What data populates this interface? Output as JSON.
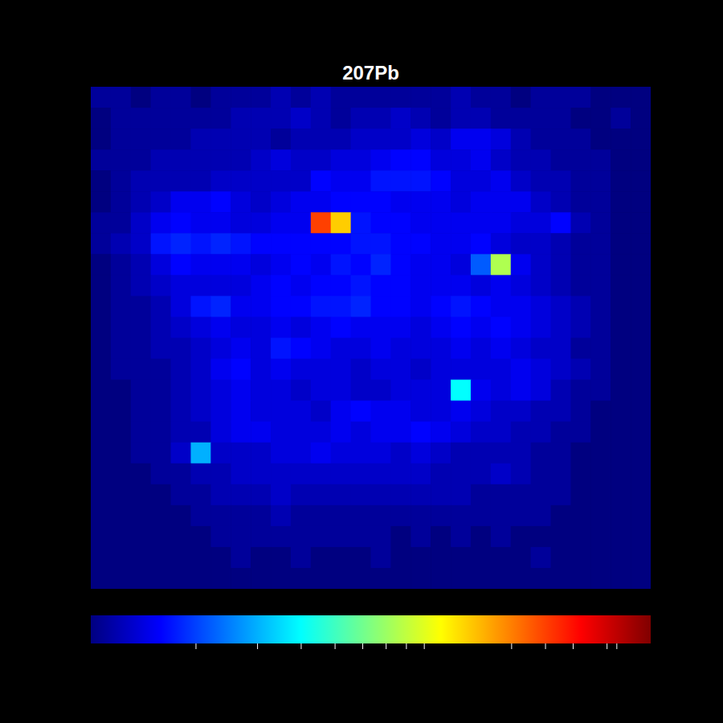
{
  "chart_data": {
    "type": "heatmap",
    "title": "207Pb",
    "log": true,
    "tick_labels": false,
    "colorbar": {
      "range": [
        1,
        40
      ],
      "ticks": [
        2,
        3,
        4,
        5,
        6,
        7,
        8,
        9,
        16,
        20,
        24,
        30,
        32
      ]
    },
    "cells": [
      [
        1.1,
        1.1,
        1.0,
        1.1,
        1.1,
        1.0,
        1.1,
        1.1,
        1.1,
        1.2,
        1.1,
        1.2,
        1.1,
        1.1,
        1.1,
        1.1,
        1.1,
        1.1,
        1.2,
        1.1,
        1.1,
        1.0,
        1.1,
        1.1,
        1.1,
        1.0,
        1.0,
        1.0
      ],
      [
        1.0,
        1.1,
        1.1,
        1.1,
        1.1,
        1.1,
        1.1,
        1.2,
        1.2,
        1.2,
        1.3,
        1.2,
        1.1,
        1.2,
        1.2,
        1.3,
        1.2,
        1.1,
        1.2,
        1.2,
        1.1,
        1.1,
        1.1,
        1.1,
        1.0,
        1.0,
        1.1,
        1.0
      ],
      [
        1.0,
        1.1,
        1.1,
        1.1,
        1.1,
        1.2,
        1.2,
        1.2,
        1.2,
        1.1,
        1.2,
        1.2,
        1.2,
        1.3,
        1.3,
        1.3,
        1.4,
        1.3,
        1.5,
        1.5,
        1.4,
        1.2,
        1.1,
        1.1,
        1.1,
        1.0,
        1.0,
        1.0
      ],
      [
        1.1,
        1.1,
        1.1,
        1.2,
        1.2,
        1.2,
        1.2,
        1.2,
        1.3,
        1.4,
        1.3,
        1.3,
        1.4,
        1.4,
        1.5,
        1.6,
        1.6,
        1.4,
        1.4,
        1.5,
        1.3,
        1.2,
        1.2,
        1.1,
        1.1,
        1.1,
        1.0,
        1.0
      ],
      [
        1.0,
        1.1,
        1.2,
        1.2,
        1.2,
        1.2,
        1.3,
        1.3,
        1.3,
        1.3,
        1.3,
        1.6,
        1.5,
        1.5,
        1.7,
        1.7,
        1.7,
        1.6,
        1.4,
        1.4,
        1.5,
        1.3,
        1.2,
        1.2,
        1.1,
        1.1,
        1.0,
        1.0
      ],
      [
        1.0,
        1.1,
        1.2,
        1.3,
        1.5,
        1.5,
        1.6,
        1.4,
        1.3,
        1.4,
        1.5,
        1.5,
        1.6,
        1.6,
        1.6,
        1.5,
        1.5,
        1.5,
        1.4,
        1.5,
        1.5,
        1.5,
        1.3,
        1.2,
        1.1,
        1.1,
        1.0,
        1.0
      ],
      [
        1.1,
        1.1,
        1.3,
        1.5,
        1.6,
        1.5,
        1.5,
        1.4,
        1.4,
        1.5,
        1.5,
        20,
        12,
        1.7,
        1.6,
        1.6,
        1.5,
        1.5,
        1.5,
        1.5,
        1.5,
        1.4,
        1.4,
        1.6,
        1.2,
        1.1,
        1.0,
        1.0
      ],
      [
        1.1,
        1.2,
        1.3,
        1.7,
        1.8,
        1.7,
        1.8,
        1.7,
        1.6,
        1.6,
        1.6,
        1.6,
        1.6,
        1.7,
        1.7,
        1.6,
        1.6,
        1.5,
        1.5,
        1.6,
        1.4,
        1.3,
        1.3,
        1.2,
        1.1,
        1.1,
        1.0,
        1.0
      ],
      [
        1.0,
        1.1,
        1.2,
        1.4,
        1.6,
        1.5,
        1.5,
        1.5,
        1.4,
        1.5,
        1.6,
        1.5,
        1.7,
        1.6,
        1.8,
        1.6,
        1.5,
        1.5,
        1.4,
        2.2,
        7.5,
        1.5,
        1.3,
        1.2,
        1.1,
        1.1,
        1.0,
        1.0
      ],
      [
        1.0,
        1.1,
        1.2,
        1.3,
        1.4,
        1.4,
        1.4,
        1.4,
        1.5,
        1.6,
        1.5,
        1.6,
        1.6,
        1.7,
        1.6,
        1.6,
        1.5,
        1.5,
        1.5,
        1.4,
        1.5,
        1.4,
        1.3,
        1.2,
        1.1,
        1.1,
        1.0,
        1.0
      ],
      [
        1.0,
        1.1,
        1.1,
        1.2,
        1.4,
        1.7,
        1.8,
        1.5,
        1.5,
        1.6,
        1.6,
        1.7,
        1.7,
        1.8,
        1.6,
        1.6,
        1.5,
        1.6,
        1.7,
        1.6,
        1.5,
        1.5,
        1.4,
        1.3,
        1.2,
        1.1,
        1.0,
        1.0
      ],
      [
        1.0,
        1.1,
        1.1,
        1.2,
        1.3,
        1.4,
        1.5,
        1.4,
        1.4,
        1.5,
        1.4,
        1.5,
        1.6,
        1.5,
        1.5,
        1.5,
        1.4,
        1.5,
        1.6,
        1.5,
        1.6,
        1.5,
        1.4,
        1.3,
        1.2,
        1.1,
        1.0,
        1.0
      ],
      [
        1.0,
        1.1,
        1.1,
        1.2,
        1.2,
        1.3,
        1.4,
        1.5,
        1.4,
        1.7,
        1.6,
        1.5,
        1.4,
        1.4,
        1.5,
        1.4,
        1.4,
        1.4,
        1.5,
        1.4,
        1.5,
        1.4,
        1.3,
        1.3,
        1.1,
        1.1,
        1.0,
        1.0
      ],
      [
        1.0,
        1.1,
        1.1,
        1.1,
        1.2,
        1.3,
        1.5,
        1.6,
        1.4,
        1.5,
        1.4,
        1.4,
        1.4,
        1.3,
        1.4,
        1.4,
        1.3,
        1.4,
        1.4,
        1.4,
        1.4,
        1.5,
        1.4,
        1.3,
        1.2,
        1.1,
        1.0,
        1.0
      ],
      [
        1.0,
        1.0,
        1.1,
        1.1,
        1.2,
        1.3,
        1.4,
        1.5,
        1.4,
        1.4,
        1.3,
        1.4,
        1.4,
        1.3,
        1.3,
        1.4,
        1.4,
        1.4,
        4.0,
        1.5,
        1.4,
        1.5,
        1.4,
        1.2,
        1.1,
        1.1,
        1.0,
        1.0
      ],
      [
        1.0,
        1.0,
        1.1,
        1.1,
        1.2,
        1.3,
        1.4,
        1.5,
        1.4,
        1.4,
        1.4,
        1.3,
        1.5,
        1.6,
        1.5,
        1.5,
        1.4,
        1.4,
        1.5,
        1.4,
        1.3,
        1.3,
        1.2,
        1.2,
        1.1,
        1.0,
        1.0,
        1.0
      ],
      [
        1.0,
        1.0,
        1.1,
        1.1,
        1.2,
        1.2,
        1.4,
        1.5,
        1.5,
        1.4,
        1.4,
        1.4,
        1.5,
        1.4,
        1.5,
        1.5,
        1.6,
        1.5,
        1.4,
        1.3,
        1.3,
        1.2,
        1.2,
        1.1,
        1.1,
        1.0,
        1.0,
        1.0
      ],
      [
        1.0,
        1.0,
        1.1,
        1.1,
        1.3,
        3.0,
        1.3,
        1.3,
        1.3,
        1.4,
        1.4,
        1.5,
        1.4,
        1.4,
        1.4,
        1.3,
        1.4,
        1.3,
        1.2,
        1.2,
        1.2,
        1.2,
        1.1,
        1.1,
        1.0,
        1.0,
        1.0,
        1.0
      ],
      [
        1.0,
        1.0,
        1.0,
        1.1,
        1.1,
        1.2,
        1.2,
        1.3,
        1.3,
        1.3,
        1.3,
        1.3,
        1.3,
        1.3,
        1.3,
        1.3,
        1.3,
        1.2,
        1.2,
        1.2,
        1.3,
        1.2,
        1.1,
        1.1,
        1.0,
        1.0,
        1.0,
        1.0
      ],
      [
        1.0,
        1.0,
        1.0,
        1.0,
        1.1,
        1.1,
        1.2,
        1.2,
        1.2,
        1.3,
        1.2,
        1.2,
        1.2,
        1.2,
        1.2,
        1.2,
        1.2,
        1.2,
        1.2,
        1.1,
        1.1,
        1.1,
        1.1,
        1.1,
        1.0,
        1.0,
        1.0,
        1.0
      ],
      [
        1.0,
        1.0,
        1.0,
        1.0,
        1.0,
        1.1,
        1.1,
        1.1,
        1.1,
        1.2,
        1.1,
        1.1,
        1.1,
        1.1,
        1.1,
        1.1,
        1.1,
        1.1,
        1.1,
        1.1,
        1.1,
        1.1,
        1.1,
        1.0,
        1.0,
        1.0,
        1.0,
        1.0
      ],
      [
        1.0,
        1.0,
        1.0,
        1.0,
        1.0,
        1.0,
        1.1,
        1.1,
        1.1,
        1.1,
        1.1,
        1.1,
        1.1,
        1.1,
        1.1,
        1.0,
        1.1,
        1.0,
        1.1,
        1.0,
        1.1,
        1.0,
        1.0,
        1.0,
        1.0,
        1.0,
        1.0,
        1.0
      ],
      [
        1.0,
        1.0,
        1.0,
        1.0,
        1.0,
        1.0,
        1.0,
        1.1,
        1.0,
        1.0,
        1.1,
        1.0,
        1.0,
        1.0,
        1.1,
        1.0,
        1.0,
        1.0,
        1.0,
        1.0,
        1.0,
        1.0,
        1.1,
        1.0,
        1.0,
        1.0,
        1.0,
        1.0
      ],
      [
        1.0,
        1.0,
        1.0,
        1.0,
        1.0,
        1.0,
        1.0,
        1.0,
        1.0,
        1.0,
        1.0,
        1.0,
        1.0,
        1.0,
        1.0,
        1.0,
        1.0,
        1.0,
        1.0,
        1.0,
        1.0,
        1.0,
        1.0,
        1.0,
        1.0,
        1.0,
        1.0,
        1.0
      ]
    ]
  }
}
